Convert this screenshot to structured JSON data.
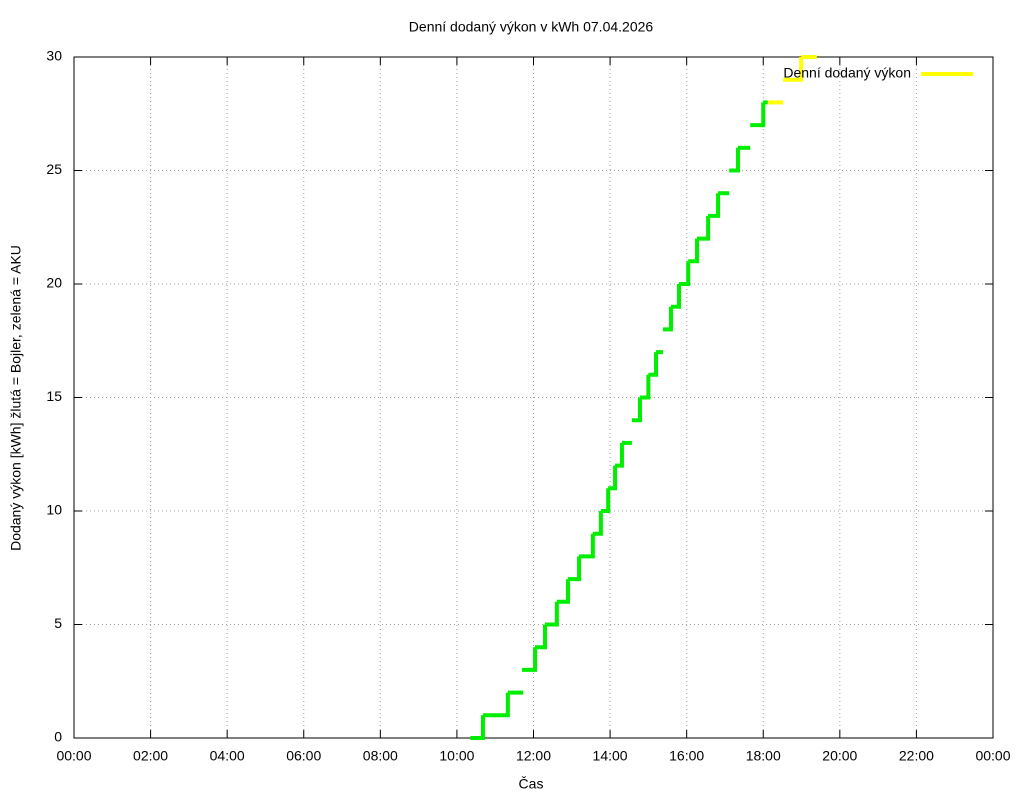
{
  "chart_data": {
    "type": "line",
    "steps": true,
    "title": "Denní dodaný výkon v kWh 07.04.2026",
    "x_label": "Čas",
    "y_label": "Dodaný výkon [kWh]  žlutá = Bojler, zelená = AKU",
    "xlim": [
      0,
      24
    ],
    "xticks": [
      {
        "value": 0,
        "label": "00:00"
      },
      {
        "value": 2,
        "label": "02:00"
      },
      {
        "value": 4,
        "label": "04:00"
      },
      {
        "value": 6,
        "label": "06:00"
      },
      {
        "value": 8,
        "label": "08:00"
      },
      {
        "value": 10,
        "label": "10:00"
      },
      {
        "value": 12,
        "label": "12:00"
      },
      {
        "value": 14,
        "label": "14:00"
      },
      {
        "value": 16,
        "label": "16:00"
      },
      {
        "value": 18,
        "label": "18:00"
      },
      {
        "value": 20,
        "label": "20:00"
      },
      {
        "value": 22,
        "label": "22:00"
      },
      {
        "value": 24,
        "label": "00:00"
      }
    ],
    "ylim": [
      0,
      30
    ],
    "yticks": [
      0,
      5,
      10,
      15,
      20,
      25,
      30
    ],
    "grid": true,
    "legend": "top-right",
    "series": [
      {
        "color": "#00ee00",
        "x": [
          10.35,
          10.68,
          11.33,
          11.73,
          null,
          11.7,
          12.04,
          12.3,
          12.61,
          12.9,
          13.19,
          13.55,
          13.76,
          13.95,
          14.13,
          14.31,
          14.57,
          null,
          14.57,
          14.78,
          15.0,
          15.2,
          15.38,
          null,
          15.38,
          15.59,
          15.8,
          16.04,
          16.27,
          16.56,
          16.82,
          17.11,
          null,
          17.11,
          17.34,
          17.66,
          null,
          17.66,
          18.0,
          18.12
        ],
        "values": [
          0,
          1,
          2,
          2,
          null,
          3,
          4,
          5,
          6,
          7,
          8,
          9,
          10,
          11,
          12,
          13,
          13,
          null,
          14,
          15,
          16,
          17,
          17,
          null,
          18,
          19,
          20,
          21,
          22,
          23,
          24,
          24,
          null,
          25,
          26,
          26,
          null,
          27,
          28,
          28
        ]
      },
      {
        "name": "Denní dodaný výkon",
        "color": "#ffff00",
        "x": [
          18.12,
          18.52,
          null,
          18.52,
          18.99,
          19.4
        ],
        "values": [
          28,
          28,
          null,
          29,
          30,
          30
        ]
      }
    ]
  }
}
